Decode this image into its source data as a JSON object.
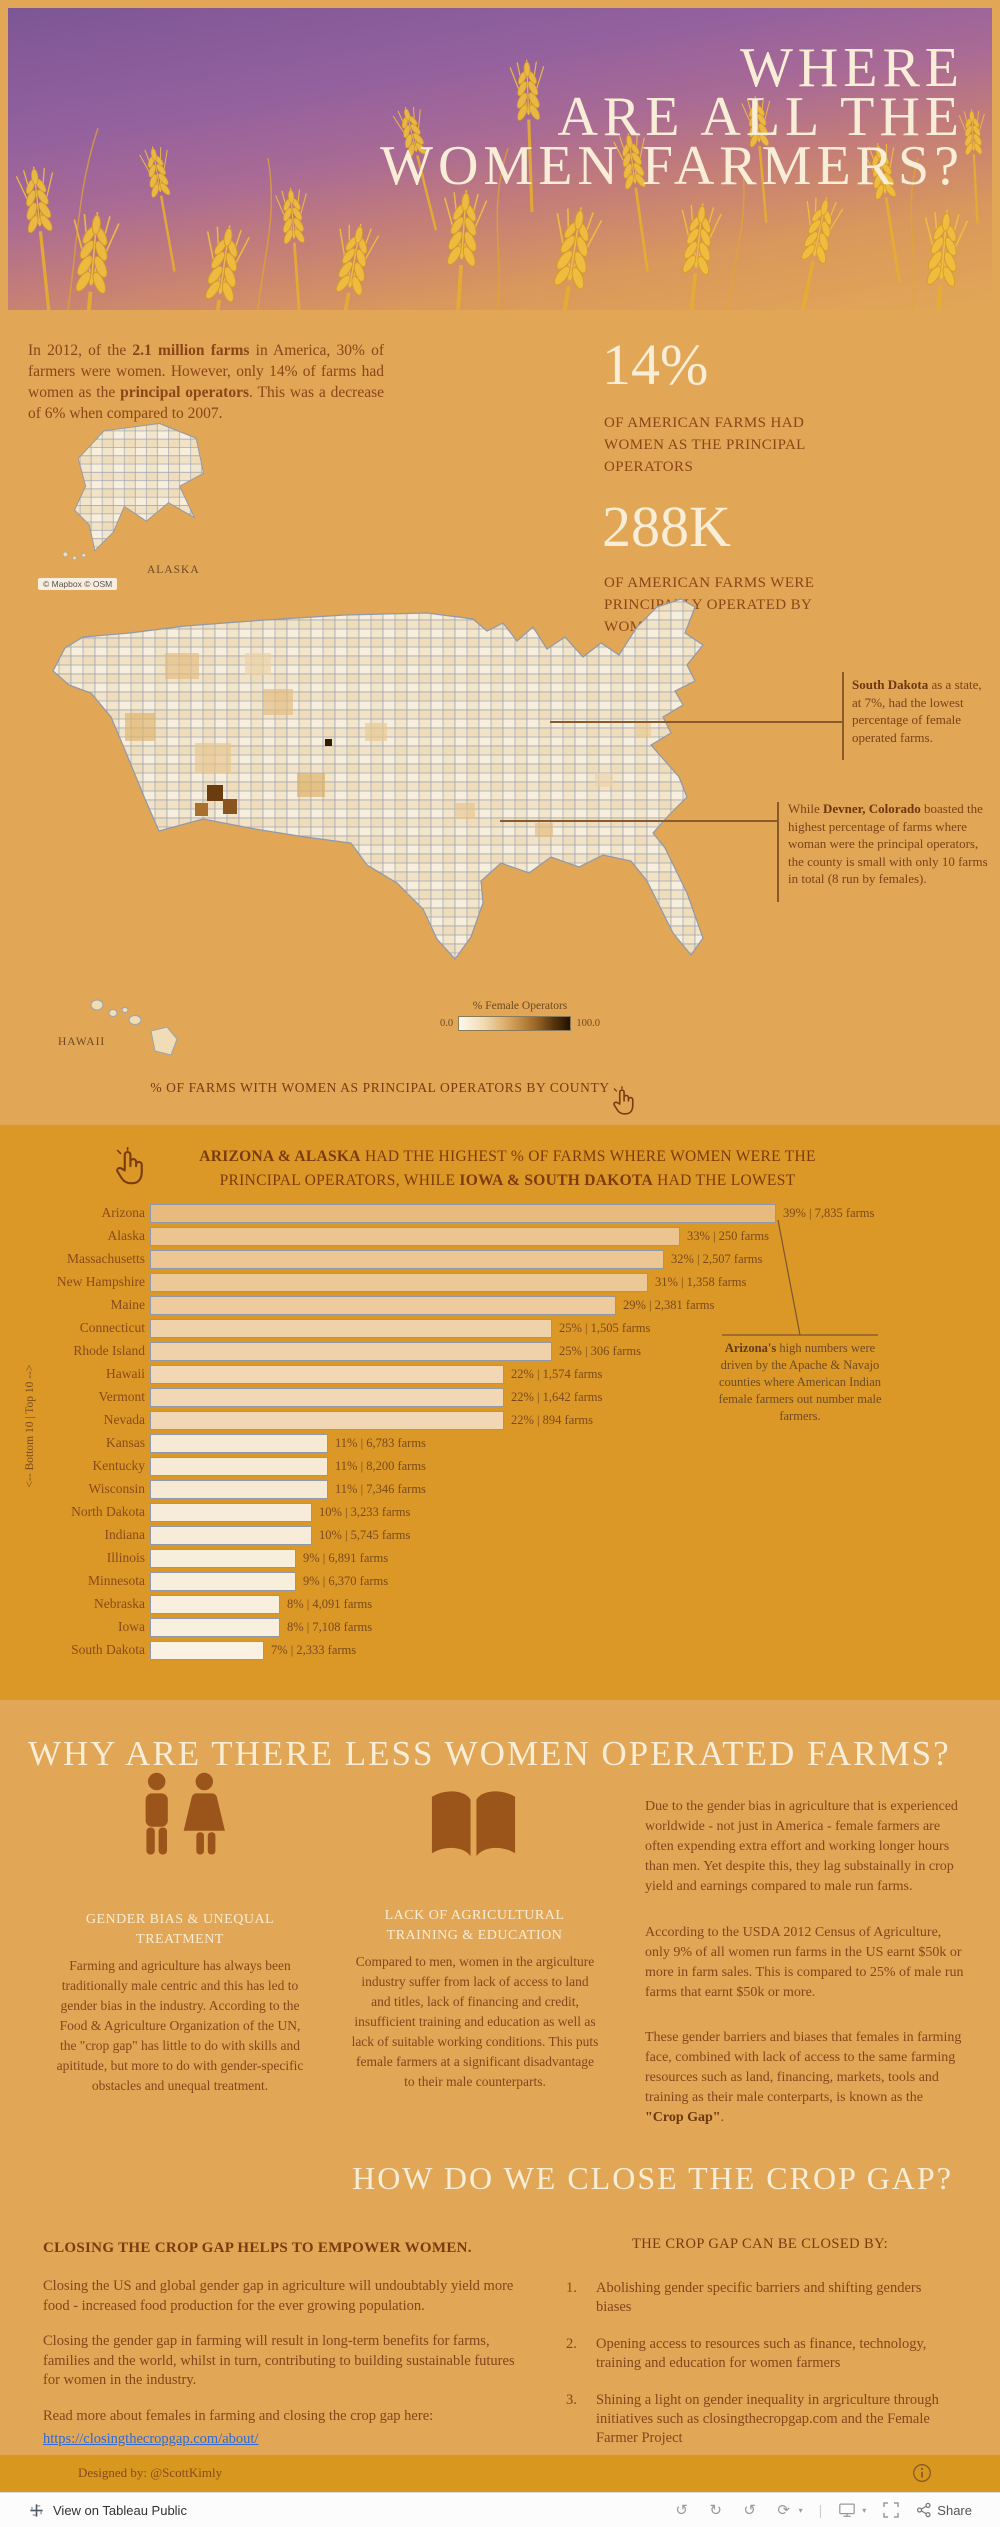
{
  "header": {
    "title_line1": "WHERE",
    "title_line2": "ARE ALL THE",
    "title_line3": "WOMEN FARMERS?"
  },
  "intro": {
    "p_a": "In 2012, of the ",
    "p_b": "2.1 million farms",
    "p_c": " in America, 30% of farmers were women. However, only 14% of farms had women as the ",
    "p_d": "principal operators",
    "p_e": ". This was a decrease of 6% when compared to 2007."
  },
  "stats": {
    "stat1_value": "14%",
    "stat1_caption": "OF AMERICAN FARMS HAD WOMEN AS THE PRINCIPAL OPERATORS",
    "stat2_value": "288K",
    "stat2_caption": "OF AMERICAN FARMS WERE PRINCIPALLY OPERATED BY WOMEN"
  },
  "map": {
    "alaska_label": "ALASKA",
    "hawaii_label": "HAWAII",
    "attribution": "© Mapbox  © OSM",
    "legend_title": "% Female Operators",
    "legend_min": "0.0",
    "legend_max": "100.0",
    "caption": "% OF FARMS WITH WOMEN AS PRINCIPAL OPERATORS BY COUNTY",
    "annotation_sd_bold": "South Dakota",
    "annotation_sd_rest": " as a state, at 7%, had the lowest percentage of female operated farms.",
    "annotation_denver_pre": "While ",
    "annotation_denver_bold": "Devner, Colorado",
    "annotation_denver_rest": " boasted the highest percentage of farms where woman were the principal operators, the county is small with only 10 farms in total (8 run by females)."
  },
  "barchart": {
    "heading_a": "ARIZONA & ALASKA",
    "heading_b": " HAD THE HIGHEST % OF FARMS WHERE WOMEN WERE THE PRINCIPAL OPERATORS, WHILE ",
    "heading_c": "IOWA & SOUTH DAKOTA",
    "heading_d": " HAD THE LOWEST",
    "axis_label": "<-- Bottom 10 | Top 10 -->",
    "annotation_bold": "Arizona's",
    "annotation_rest": " high numbers were driven by the Apache & Navajo counties where American Indian female farmers out number male farmers."
  },
  "chart_data": [
    {
      "type": "heatmap",
      "subtype": "choropleth-county-map",
      "title": "% OF FARMS WITH WOMEN AS PRINCIPAL OPERATORS BY COUNTY",
      "legend": {
        "title": "% Female Operators",
        "min": 0.0,
        "max": 100.0,
        "position": "bottom-right"
      },
      "annotations": [
        "South Dakota as a state, at 7%, had the lowest percentage of female operated farms.",
        "While Devner, Colorado boasted the highest percentage of farms where woman were the principal operators, the county is small with only 10 farms in total (8 run by females)."
      ]
    },
    {
      "type": "bar",
      "orientation": "horizontal",
      "title": "ARIZONA & ALASKA HAD THE HIGHEST % OF FARMS WHERE WOMEN WERE THE PRINCIPAL OPERATORS, WHILE IOWA & SOUTH DAKOTA HAD THE LOWEST",
      "ylabel": "<-- Bottom 10 | Top 10 -->",
      "xlim": [
        0,
        40
      ],
      "value_label_format": "{pct}% | {farms} farms",
      "categories": [
        "Arizona",
        "Alaska",
        "Massachusetts",
        "New Hampshire",
        "Maine",
        "Connecticut",
        "Rhode Island",
        "Hawaii",
        "Vermont",
        "Nevada",
        "Kansas",
        "Kentucky",
        "Wisconsin",
        "North Dakota",
        "Indiana",
        "Illinois",
        "Minnesota",
        "Nebraska",
        "Iowa",
        "South Dakota"
      ],
      "values_pct": [
        39,
        33,
        32,
        31,
        29,
        25,
        25,
        22,
        22,
        22,
        11,
        11,
        11,
        10,
        10,
        9,
        9,
        8,
        8,
        7
      ],
      "farms": [
        "7,835",
        "250",
        "2,507",
        "1,358",
        "2,381",
        "1,505",
        "306",
        "1,574",
        "1,642",
        "894",
        "6,783",
        "8,200",
        "7,346",
        "3,233",
        "5,745",
        "6,891",
        "6,370",
        "4,091",
        "7,108",
        "2,333"
      ]
    }
  ],
  "why": {
    "title": "WHY ARE THERE LESS WOMEN OPERATED FARMS?",
    "col1_heading": "GENDER BIAS & UNEQUAL TREATMENT",
    "col1_body": "Farming and agriculture has always been traditionally male centric and this has led to gender bias in the industry. According to the Food & Agriculture Organization of the UN, the \"crop gap\" has little to do with skills and apititude, but more to do with gender-specific obstacles and unequal treatment.",
    "col2_heading": "LACK OF AGRICULTURAL TRAINING & EDUCATION",
    "col2_body": "Compared to men, women in the argiculture industry suffer from lack of access to land and titles, lack of financing and credit, insufficient training and education as well as lack of suitable working conditions. This puts female farmers at a significant disadvantage to their male counterparts.",
    "col3_p1": "Due to the gender bias in agriculture that is experienced worldwide - not just in America - female farmers are often expending extra effort and working longer hours than men. Yet despite this, they lag substainally in crop yield and earnings compared to male run farms.",
    "col3_p2": "According to the USDA 2012 Census of Agriculture, only 9% of all women run farms in the US earnt $50k or more in farm sales. This is compared to 25% of male run farms that earnt $50k or more.",
    "col3_p3a": "These gender barriers and biases that females in farming face, combined with lack of access to the same farming resources such as land, financing, markets, tools and training as their male conterparts, is known as the ",
    "col3_p3b": "\"Crop Gap\"",
    "col3_p3c": "."
  },
  "how": {
    "title": "HOW DO WE CLOSE THE CROP GAP?",
    "left_heading": "CLOSING THE CROP GAP HELPS TO EMPOWER WOMEN.",
    "left_p1": "Closing the US and global gender gap in agriculture will undoubtably yield more food - increased food production for the ever growing population.",
    "left_p2": "Closing the gender gap in farming will result in long-term benefits for farms, families and the world, whilst in turn, contributing to building sustainable futures for women in the industry.",
    "left_p3": "Read more about females in farming and closing the crop gap here:",
    "left_link": "https://closingthecropgap.com/about/",
    "right_heading": "THE CROP GAP CAN BE CLOSED BY:",
    "right_items": [
      "Abolishing gender specific barriers and shifting genders biases",
      "Opening access to resources such as finance, technology, training and education for women farmers",
      "Shining a light on gender inequality in argriculture through initiatives such as closingthecropgap.com and the Female Farmer Project"
    ]
  },
  "footer": {
    "credit": "Designed by: @ScottKimly"
  },
  "tableau_bar": {
    "view_label": "View on Tableau Public",
    "share_label": "Share"
  },
  "colors": {
    "page_bg": "#e1a656",
    "section_bg": "#dc9826",
    "text_dark": "#8a4519",
    "text_cream": "#f8edd6",
    "bar_low": "#f9f1e2",
    "bar_high": "#e8ba7d",
    "bar_border": "#8f99ab",
    "link": "#2e6bd6"
  }
}
